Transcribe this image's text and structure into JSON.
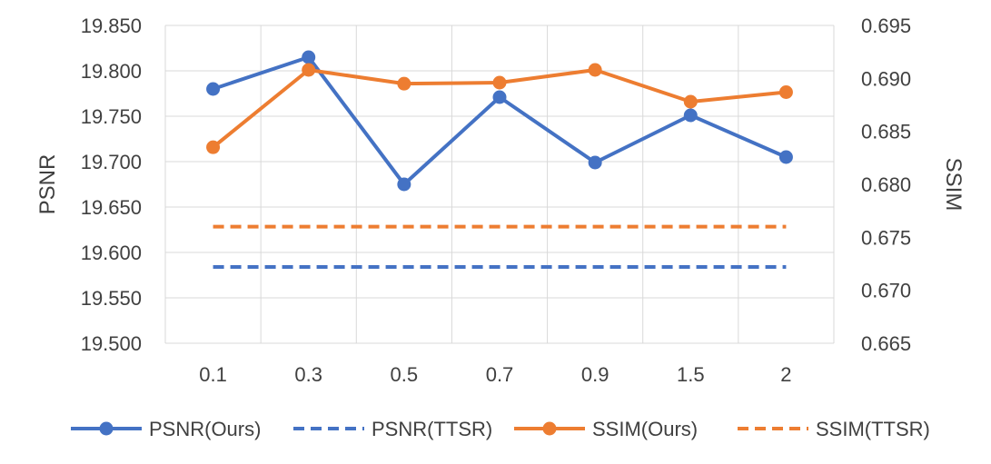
{
  "chart_data": {
    "type": "line",
    "categories": [
      "0.1",
      "0.3",
      "0.5",
      "0.7",
      "0.9",
      "1.5",
      "2"
    ],
    "ylabel": "PSNR",
    "y2label": "SSIM",
    "ylim": [
      19.5,
      19.85
    ],
    "y2lim": [
      0.665,
      0.695
    ],
    "yticks": [
      "19.500",
      "19.550",
      "19.600",
      "19.650",
      "19.700",
      "19.750",
      "19.800",
      "19.850"
    ],
    "y2ticks": [
      "0.665",
      "0.670",
      "0.675",
      "0.680",
      "0.685",
      "0.690",
      "0.695"
    ],
    "grid": true,
    "legend_position": "bottom",
    "series": [
      {
        "name": "PSNR(Ours)",
        "axis": "left",
        "style": "solid",
        "marker": true,
        "color": "#4472C4",
        "values": [
          19.78,
          19.815,
          19.675,
          19.771,
          19.699,
          19.751,
          19.705
        ]
      },
      {
        "name": "PSNR(TTSR)",
        "axis": "left",
        "style": "dashed",
        "marker": false,
        "color": "#4472C4",
        "values": [
          19.584,
          19.584,
          19.584,
          19.584,
          19.584,
          19.584,
          19.584
        ]
      },
      {
        "name": "SSIM(Ours)",
        "axis": "right",
        "style": "solid",
        "marker": true,
        "color": "#ED7D31",
        "values": [
          0.6835,
          0.6908,
          0.6895,
          0.6896,
          0.6908,
          0.6878,
          0.6887
        ]
      },
      {
        "name": "SSIM(TTSR)",
        "axis": "right",
        "style": "dashed",
        "marker": false,
        "color": "#ED7D31",
        "values": [
          0.676,
          0.676,
          0.676,
          0.676,
          0.676,
          0.676,
          0.676
        ]
      }
    ]
  }
}
